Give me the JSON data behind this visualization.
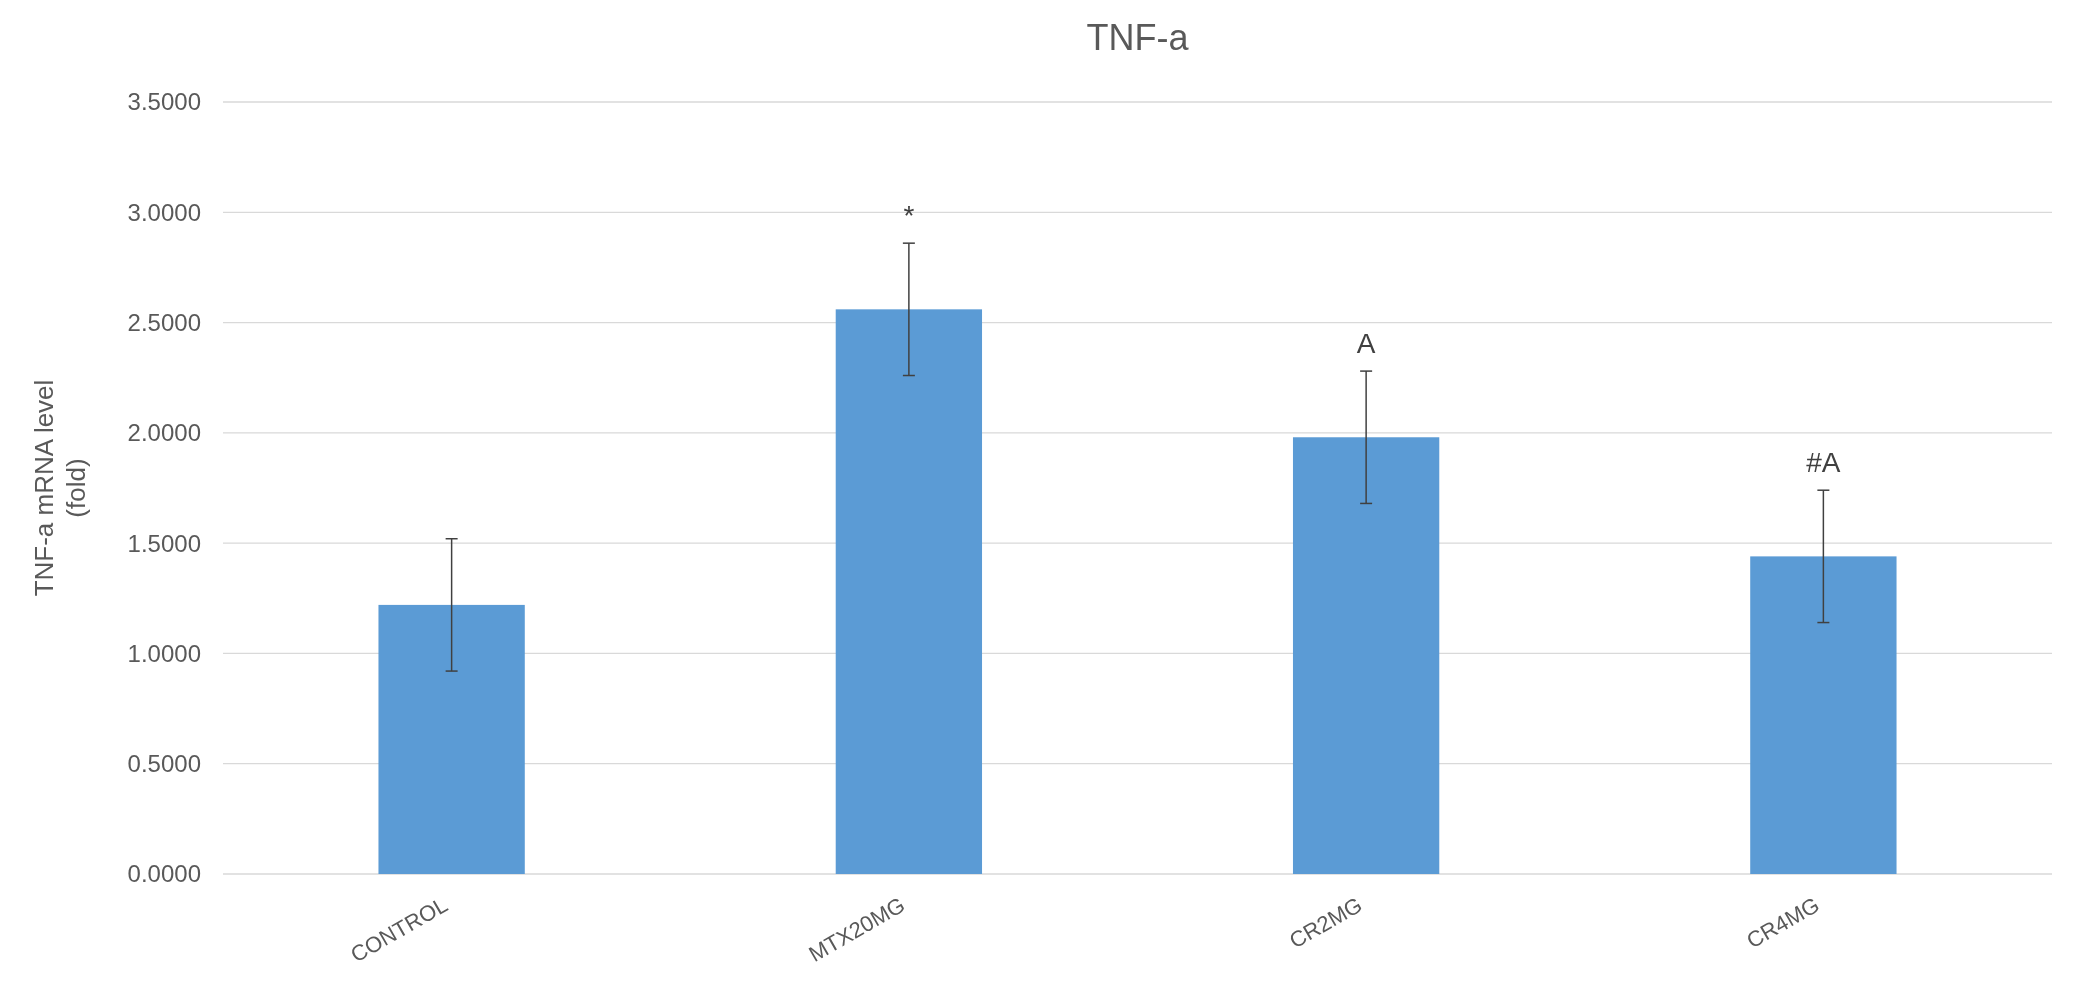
{
  "chart_data": {
    "type": "bar",
    "title": "TNF-a",
    "ylabel": "TNF-a mRNA level (fold)",
    "categories": [
      "CONTROL",
      "MTX20MG",
      "CR2MG",
      "CR4MG"
    ],
    "values": [
      1.22,
      2.56,
      1.98,
      1.44
    ],
    "errors": [
      0.3,
      0.3,
      0.3,
      0.3
    ],
    "color": "#5b9bd5",
    "ylim": [
      0,
      3.5
    ],
    "yticks": [
      {
        "value": 0,
        "label": "0.0000"
      },
      {
        "value": 0.5,
        "label": "0.5000"
      },
      {
        "value": 1,
        "label": "1.0000"
      },
      {
        "value": 1.5,
        "label": "1.5000"
      },
      {
        "value": 2,
        "label": "2.0000"
      },
      {
        "value": 2.5,
        "label": "2.5000"
      },
      {
        "value": 3,
        "label": "3.0000"
      },
      {
        "value": 3.5,
        "label": "3.5000"
      }
    ],
    "grid": "y",
    "annotations": [
      {
        "text": "*",
        "x": "MTX20MG",
        "y": 2.56
      },
      {
        "text": "A",
        "x": "CR2MG",
        "y": 1.98
      },
      {
        "text": "#A",
        "x": "CR4MG",
        "y": 1.44
      }
    ]
  }
}
